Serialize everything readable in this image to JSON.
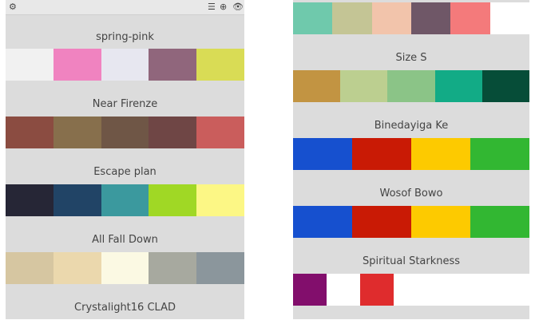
{
  "toolbar": {
    "settings_icon": "gear-icon",
    "menu_icon": "menu-icon",
    "add_icon": "plus-circle-icon",
    "view_icon": "eye-icon"
  },
  "left": [
    {
      "name": "spring-pink",
      "colors": [
        "#f1f1f1",
        "#f083c0",
        "#e7e7f0",
        "#90667c",
        "#d9dc55"
      ]
    },
    {
      "name": "Near Firenze",
      "colors": [
        "#8b4c41",
        "#876f4c",
        "#6f5646",
        "#6f4645",
        "#ca5d5c"
      ]
    },
    {
      "name": "Escape plan",
      "colors": [
        "#262636",
        "#214466",
        "#3b999e",
        "#a0d825",
        "#fcf785"
      ]
    },
    {
      "name": "All Fall Down",
      "colors": [
        "#d6c6a1",
        "#ebd8ad",
        "#fbf9e3",
        "#a7a99f",
        "#8b969c"
      ]
    },
    {
      "name": "Crystalight16 CLAD",
      "colors": []
    }
  ],
  "right_top_colors": [
    "#6fc9ac",
    "#c4c595",
    "#f2c4ab",
    "#6f5767",
    "#f47a7b",
    "#ffffff"
  ],
  "right": [
    {
      "name": "Size S",
      "colors": [
        "#c29442",
        "#bccf90",
        "#8bc487",
        "#12ab86",
        "#064d38"
      ]
    },
    {
      "name": "Binedayiga Ke",
      "colors": [
        "#1650cf",
        "#c91a05",
        "#fdca00",
        "#32b732"
      ]
    },
    {
      "name": "Wosof Bowo",
      "colors": [
        "#1650cf",
        "#c91a05",
        "#fdca00",
        "#32b732"
      ]
    },
    {
      "name": "Spiritual Starkness",
      "colors": [
        "#820e6c",
        "#ffffff",
        "#df2c2d"
      ]
    }
  ]
}
